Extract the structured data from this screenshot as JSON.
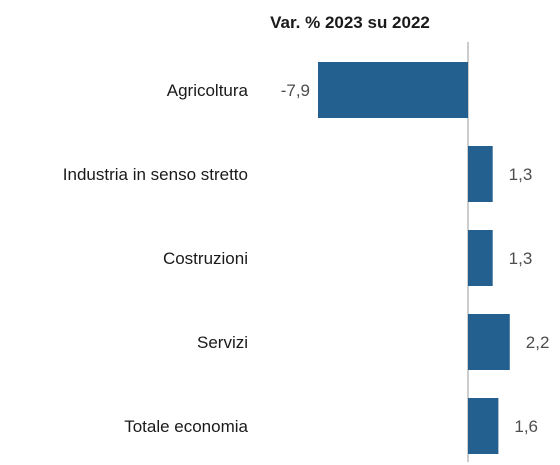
{
  "chart_data": {
    "type": "bar",
    "orientation": "horizontal",
    "title": "Var. % 2023 su 2022",
    "xlabel": "",
    "ylabel": "",
    "categories": [
      "Agricoltura",
      "Industria in senso stretto",
      "Costruzioni",
      "Servizi",
      "Totale economia"
    ],
    "values": [
      -7.9,
      1.3,
      1.3,
      2.2,
      1.6
    ],
    "value_labels": [
      "-7,9",
      "1,3",
      "1,3",
      "2,2",
      "1,6"
    ],
    "xlim": [
      -7.9,
      2.2
    ],
    "grid": false,
    "legend": "none",
    "bar_color": "#24608f",
    "axis_color": "#999999"
  }
}
